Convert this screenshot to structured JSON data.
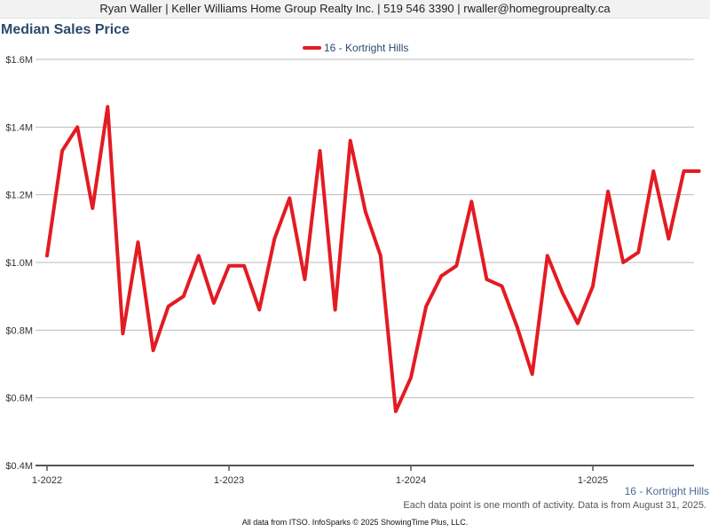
{
  "header": {
    "agent_line": "Ryan Waller | Keller Williams Home Group Realty Inc. | 519 546 3390 | rwaller@homegrouprealty.ca"
  },
  "footer": {
    "note": "Each data point is one month of activity. Data is from August 31, 2025.",
    "source": "All data from ITSO. InfoSparks © 2025 ShowingTime Plus, LLC."
  },
  "chart_data": {
    "type": "line",
    "title": "Median Sales Price",
    "xlabel": "",
    "ylabel": "",
    "x_tick_labels": [
      "1-2022",
      "1-2023",
      "1-2024",
      "1-2025"
    ],
    "y_tick_labels": [
      "$0.4M",
      "$0.6M",
      "$0.8M",
      "$1.0M",
      "$1.2M",
      "$1.4M",
      "$1.6M"
    ],
    "y_ticks": [
      0.4,
      0.6,
      0.8,
      1.0,
      1.2,
      1.4,
      1.6
    ],
    "ylim": [
      0.4,
      1.6
    ],
    "xlim": [
      "2022-01",
      "2025-08"
    ],
    "grid": "horizontal",
    "legend_position": "top-center",
    "series_caption": "16 - Kortright Hills",
    "colors": {
      "series": "#e31b23",
      "grid": "#bbbbbb",
      "axis": "#555555",
      "title": "#2c4a6b",
      "caption": "#4a6a92"
    },
    "series": [
      {
        "name": "16 - Kortright Hills",
        "x": [
          "2022-01",
          "2022-02",
          "2022-03",
          "2022-04",
          "2022-05",
          "2022-06",
          "2022-07",
          "2022-08",
          "2022-09",
          "2022-10",
          "2022-11",
          "2022-12",
          "2023-01",
          "2023-02",
          "2023-03",
          "2023-04",
          "2023-05",
          "2023-06",
          "2023-07",
          "2023-08",
          "2023-09",
          "2023-10",
          "2023-11",
          "2023-12",
          "2024-01",
          "2024-02",
          "2024-03",
          "2024-04",
          "2024-05",
          "2024-06",
          "2024-07",
          "2024-08",
          "2024-09",
          "2024-10",
          "2024-11",
          "2024-12",
          "2025-01",
          "2025-02",
          "2025-03",
          "2025-04",
          "2025-05",
          "2025-06",
          "2025-07",
          "2025-08"
        ],
        "values": [
          1.02,
          1.33,
          1.4,
          1.16,
          1.46,
          0.79,
          1.06,
          0.74,
          0.87,
          0.9,
          1.02,
          0.88,
          0.99,
          0.99,
          0.86,
          1.07,
          1.19,
          0.95,
          1.33,
          0.86,
          1.36,
          1.15,
          1.02,
          0.56,
          0.66,
          0.87,
          0.96,
          0.99,
          1.18,
          0.95,
          0.93,
          0.81,
          0.67,
          1.02,
          0.91,
          0.82,
          0.93,
          1.21,
          1.0,
          1.03,
          1.27,
          1.07,
          1.27,
          1.27
        ]
      }
    ]
  }
}
